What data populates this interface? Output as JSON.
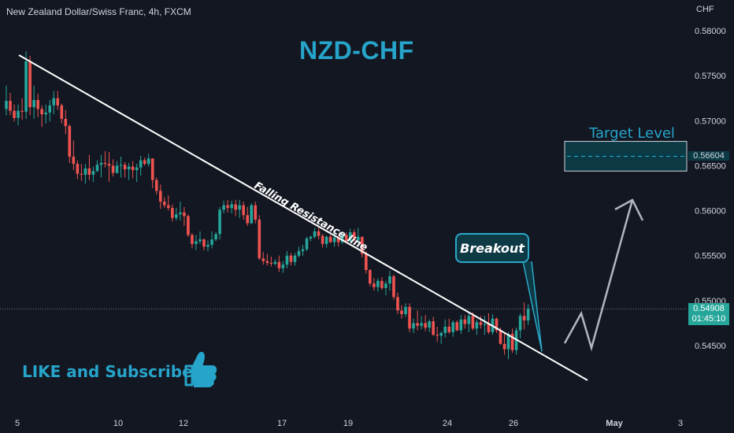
{
  "header": {
    "symbol": "New Zealand Dollar/Swiss Franc, 4h, FXCM"
  },
  "title": "NZD-CHF",
  "annotations": {
    "target_level": "Target Level",
    "breakout": "Breakout",
    "resistance": "Falling Resistance line",
    "like": "LIKE and Subscribe"
  },
  "axis": {
    "unit": "CHF"
  },
  "price_tags": {
    "target": "0.56604",
    "current": "0.54908",
    "countdown": "01:45:10"
  },
  "colors": {
    "background": "#131722",
    "bull": "#26a69a",
    "bear": "#ef5350",
    "accent": "#26a4c9",
    "box": "#0b3a44",
    "current_tag": "#26a69a"
  },
  "chart_data": {
    "type": "candlestick",
    "title": "NZD-CHF",
    "ylim": [
      0.5425,
      0.5815
    ],
    "yticks": [
      "0.58000",
      "0.57500",
      "0.57000",
      "0.56500",
      "0.56000",
      "0.55500",
      "0.55000",
      "0.54500"
    ],
    "xticks": [
      "5",
      "10",
      "12",
      "17",
      "19",
      "24",
      "26",
      "May",
      "3"
    ],
    "last_price": 0.54908,
    "target_price": 0.56604,
    "target_zone": [
      0.5644,
      0.5677
    ],
    "ohlc": [
      [
        0.5713,
        0.5739,
        0.5706,
        0.5722
      ],
      [
        0.5722,
        0.5731,
        0.5706,
        0.5711
      ],
      [
        0.5711,
        0.5718,
        0.5699,
        0.5703
      ],
      [
        0.5703,
        0.5718,
        0.5695,
        0.5711
      ],
      [
        0.5711,
        0.5725,
        0.5701,
        0.571
      ],
      [
        0.571,
        0.5777,
        0.5702,
        0.5766
      ],
      [
        0.5766,
        0.5772,
        0.5706,
        0.5715
      ],
      [
        0.5715,
        0.5739,
        0.5702,
        0.5723
      ],
      [
        0.5723,
        0.573,
        0.5704,
        0.5713
      ],
      [
        0.5713,
        0.5717,
        0.5693,
        0.5707
      ],
      [
        0.5707,
        0.5718,
        0.5697,
        0.5709
      ],
      [
        0.5709,
        0.5723,
        0.5699,
        0.5717
      ],
      [
        0.5717,
        0.5733,
        0.5707,
        0.5725
      ],
      [
        0.5725,
        0.5733,
        0.5712,
        0.5717
      ],
      [
        0.5717,
        0.5719,
        0.5697,
        0.5702
      ],
      [
        0.5702,
        0.5712,
        0.5685,
        0.5694
      ],
      [
        0.5694,
        0.5696,
        0.5653,
        0.566
      ],
      [
        0.566,
        0.5678,
        0.5645,
        0.5652
      ],
      [
        0.5652,
        0.5656,
        0.5635,
        0.5641
      ],
      [
        0.5641,
        0.5652,
        0.5633,
        0.564
      ],
      [
        0.564,
        0.5652,
        0.563,
        0.5647
      ],
      [
        0.5647,
        0.5662,
        0.5634,
        0.564
      ],
      [
        0.564,
        0.5649,
        0.5632,
        0.5644
      ],
      [
        0.5644,
        0.5656,
        0.5643,
        0.5651
      ],
      [
        0.5651,
        0.5662,
        0.5637,
        0.5653
      ],
      [
        0.5653,
        0.5666,
        0.5648,
        0.5652
      ],
      [
        0.5652,
        0.5665,
        0.5632,
        0.565
      ],
      [
        0.565,
        0.5657,
        0.5638,
        0.5642
      ],
      [
        0.5642,
        0.5655,
        0.5641,
        0.565
      ],
      [
        0.565,
        0.566,
        0.5637,
        0.5651
      ],
      [
        0.5651,
        0.5654,
        0.5637,
        0.5646
      ],
      [
        0.5646,
        0.5653,
        0.5634,
        0.5649
      ],
      [
        0.5649,
        0.5655,
        0.5636,
        0.5645
      ],
      [
        0.5645,
        0.5652,
        0.5632,
        0.5648
      ],
      [
        0.5648,
        0.5661,
        0.5639,
        0.5656
      ],
      [
        0.5656,
        0.5659,
        0.565,
        0.5652
      ],
      [
        0.5652,
        0.5663,
        0.5649,
        0.5658
      ],
      [
        0.5658,
        0.5658,
        0.5625,
        0.5634
      ],
      [
        0.5634,
        0.5637,
        0.5618,
        0.5622
      ],
      [
        0.5622,
        0.5629,
        0.5602,
        0.561
      ],
      [
        0.561,
        0.5615,
        0.5603,
        0.5606
      ],
      [
        0.5606,
        0.5617,
        0.56,
        0.5603
      ],
      [
        0.5603,
        0.5607,
        0.5588,
        0.5592
      ],
      [
        0.5592,
        0.5603,
        0.5589,
        0.5596
      ],
      [
        0.5596,
        0.561,
        0.5589,
        0.5598
      ],
      [
        0.5598,
        0.5604,
        0.5583,
        0.5594
      ],
      [
        0.5594,
        0.5596,
        0.5571,
        0.5573
      ],
      [
        0.5573,
        0.5575,
        0.5558,
        0.5563
      ],
      [
        0.5563,
        0.5573,
        0.5556,
        0.5566
      ],
      [
        0.5566,
        0.5577,
        0.5563,
        0.5568
      ],
      [
        0.5568,
        0.5569,
        0.5556,
        0.556
      ],
      [
        0.556,
        0.5567,
        0.5555,
        0.5562
      ],
      [
        0.5562,
        0.5577,
        0.5558,
        0.5568
      ],
      [
        0.5568,
        0.5576,
        0.5566,
        0.5574
      ],
      [
        0.5574,
        0.5604,
        0.5568,
        0.5601
      ],
      [
        0.5601,
        0.5611,
        0.5597,
        0.5606
      ],
      [
        0.5606,
        0.5612,
        0.5598,
        0.5603
      ],
      [
        0.5603,
        0.5611,
        0.5597,
        0.5607
      ],
      [
        0.5607,
        0.5612,
        0.5594,
        0.5601
      ],
      [
        0.5601,
        0.5612,
        0.5592,
        0.5606
      ],
      [
        0.5606,
        0.561,
        0.559,
        0.5595
      ],
      [
        0.5595,
        0.5604,
        0.5583,
        0.5586
      ],
      [
        0.5586,
        0.5608,
        0.5585,
        0.5606
      ],
      [
        0.5606,
        0.561,
        0.5586,
        0.559
      ],
      [
        0.559,
        0.5595,
        0.5545,
        0.5547
      ],
      [
        0.5547,
        0.5554,
        0.554,
        0.5544
      ],
      [
        0.5544,
        0.5552,
        0.5539,
        0.5542
      ],
      [
        0.5542,
        0.5549,
        0.5538,
        0.5541
      ],
      [
        0.5541,
        0.5546,
        0.5539,
        0.5543
      ],
      [
        0.5543,
        0.555,
        0.5532,
        0.5536
      ],
      [
        0.5536,
        0.5544,
        0.5531,
        0.554
      ],
      [
        0.554,
        0.5555,
        0.5536,
        0.555
      ],
      [
        0.555,
        0.5553,
        0.5539,
        0.5543
      ],
      [
        0.5543,
        0.5553,
        0.5539,
        0.555
      ],
      [
        0.555,
        0.556,
        0.5548,
        0.5555
      ],
      [
        0.5555,
        0.5562,
        0.555,
        0.5557
      ],
      [
        0.5557,
        0.5571,
        0.5555,
        0.5569
      ],
      [
        0.5569,
        0.5572,
        0.5566,
        0.5571
      ],
      [
        0.5571,
        0.5581,
        0.5569,
        0.5577
      ],
      [
        0.5577,
        0.5581,
        0.5568,
        0.5572
      ],
      [
        0.5572,
        0.5574,
        0.5559,
        0.5563
      ],
      [
        0.5563,
        0.5572,
        0.5559,
        0.5571
      ],
      [
        0.5571,
        0.5573,
        0.5564,
        0.5565
      ],
      [
        0.5565,
        0.5575,
        0.556,
        0.557
      ],
      [
        0.557,
        0.5573,
        0.556,
        0.5565
      ],
      [
        0.5565,
        0.5577,
        0.5563,
        0.5573
      ],
      [
        0.5573,
        0.5576,
        0.5564,
        0.5566
      ],
      [
        0.5566,
        0.558,
        0.5565,
        0.5576
      ],
      [
        0.5576,
        0.5579,
        0.5566,
        0.5567
      ],
      [
        0.5567,
        0.5581,
        0.5564,
        0.5571
      ],
      [
        0.5571,
        0.5571,
        0.5548,
        0.5552
      ],
      [
        0.5552,
        0.5555,
        0.553,
        0.5534
      ],
      [
        0.5534,
        0.5535,
        0.5516,
        0.5519
      ],
      [
        0.5519,
        0.5525,
        0.5511,
        0.5515
      ],
      [
        0.5515,
        0.5525,
        0.551,
        0.5522
      ],
      [
        0.5522,
        0.5526,
        0.5512,
        0.5514
      ],
      [
        0.5514,
        0.5522,
        0.5506,
        0.5519
      ],
      [
        0.5519,
        0.5533,
        0.5511,
        0.5527
      ],
      [
        0.5527,
        0.5529,
        0.5501,
        0.5504
      ],
      [
        0.5504,
        0.5509,
        0.5485,
        0.5489
      ],
      [
        0.5489,
        0.5495,
        0.548,
        0.5485
      ],
      [
        0.5485,
        0.5497,
        0.5482,
        0.5493
      ],
      [
        0.5493,
        0.5497,
        0.5465,
        0.5469
      ],
      [
        0.5469,
        0.548,
        0.5464,
        0.5475
      ],
      [
        0.5475,
        0.5489,
        0.5467,
        0.5472
      ],
      [
        0.5472,
        0.5483,
        0.5468,
        0.5475
      ],
      [
        0.5475,
        0.5484,
        0.5466,
        0.547
      ],
      [
        0.547,
        0.5479,
        0.5465,
        0.5477
      ],
      [
        0.5477,
        0.5482,
        0.5461,
        0.5462
      ],
      [
        0.5462,
        0.5471,
        0.5454,
        0.5461
      ],
      [
        0.5461,
        0.5466,
        0.5452,
        0.5464
      ],
      [
        0.5464,
        0.5479,
        0.5459,
        0.5471
      ],
      [
        0.5471,
        0.548,
        0.5463,
        0.5465
      ],
      [
        0.5465,
        0.5478,
        0.546,
        0.5476
      ],
      [
        0.5476,
        0.5478,
        0.5466,
        0.5467
      ],
      [
        0.5467,
        0.5484,
        0.5463,
        0.5479
      ],
      [
        0.5479,
        0.5484,
        0.5469,
        0.5474
      ],
      [
        0.5474,
        0.5487,
        0.5465,
        0.5483
      ],
      [
        0.5483,
        0.5487,
        0.5467,
        0.5469
      ],
      [
        0.5469,
        0.5479,
        0.5462,
        0.5476
      ],
      [
        0.5476,
        0.5483,
        0.5469,
        0.5473
      ],
      [
        0.5473,
        0.5483,
        0.5462,
        0.5474
      ],
      [
        0.5474,
        0.5486,
        0.5463,
        0.5465
      ],
      [
        0.5465,
        0.5485,
        0.5462,
        0.548
      ],
      [
        0.548,
        0.5481,
        0.5464,
        0.5467
      ],
      [
        0.5467,
        0.547,
        0.5451,
        0.5452
      ],
      [
        0.5452,
        0.5464,
        0.544,
        0.5446
      ],
      [
        0.5446,
        0.5465,
        0.5435,
        0.5463
      ],
      [
        0.5463,
        0.5469,
        0.5442,
        0.5445
      ],
      [
        0.5445,
        0.547,
        0.544,
        0.5467
      ],
      [
        0.5467,
        0.5486,
        0.5458,
        0.5483
      ],
      [
        0.5483,
        0.5498,
        0.5468,
        0.5478
      ],
      [
        0.5478,
        0.5496,
        0.5473,
        0.5491
      ]
    ]
  }
}
